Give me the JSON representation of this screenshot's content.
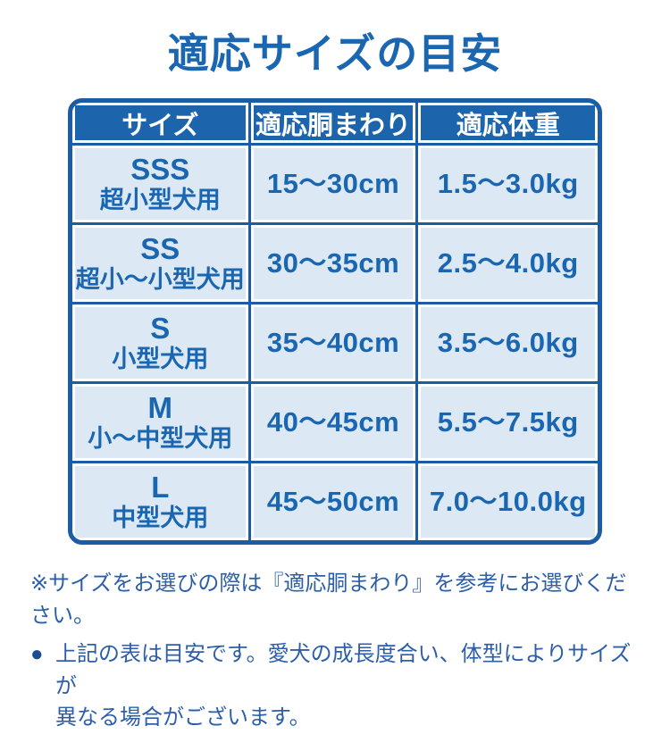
{
  "palette": {
    "blue_primary": "#1a66b0",
    "header_bg": "#1c65ad",
    "grid_blue": "#1b5ca5",
    "cell_bg": "#dce9f5",
    "note_blue": "#2d5fa8",
    "bullet_blue": "#1e4b96"
  },
  "title": "適応サイズの目安",
  "chart_data": {
    "type": "table",
    "title": "適応サイズの目安",
    "columns": [
      "サイズ",
      "適応胴まわり",
      "適応体重"
    ],
    "rows": [
      {
        "size": "SSS",
        "size_desc": "超小型犬用",
        "girth": "15〜30cm",
        "weight": "1.5〜3.0kg"
      },
      {
        "size": "SS",
        "size_desc": "超小〜小型犬用",
        "girth": "30〜35cm",
        "weight": "2.5〜4.0kg"
      },
      {
        "size": "S",
        "size_desc": "小型犬用",
        "girth": "35〜40cm",
        "weight": "3.5〜6.0kg"
      },
      {
        "size": "M",
        "size_desc": "小〜中型犬用",
        "girth": "40〜45cm",
        "weight": "5.5〜7.5kg"
      },
      {
        "size": "L",
        "size_desc": "中型犬用",
        "girth": "45〜50cm",
        "weight": "7.0〜10.0kg"
      }
    ]
  },
  "notes": {
    "note1": "※サイズをお選びの際は『適応胴まわり』を参考にお選びください。",
    "note2_bullet": "●",
    "note2_lines": [
      "上記の表は目安です。愛犬の成長度合い、体型によりサイズが",
      "異なる場合がございます。"
    ]
  }
}
